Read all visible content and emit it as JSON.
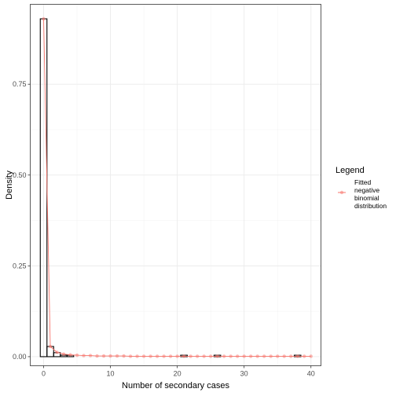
{
  "chart_data": {
    "type": "bar",
    "xlabel": "Number of secondary cases",
    "ylabel": "Density",
    "xlim": [
      -2,
      41.5
    ],
    "ylim": [
      -0.025,
      0.97
    ],
    "x_ticks": [
      0,
      10,
      20,
      30,
      40
    ],
    "y_ticks": [
      0.0,
      0.25,
      0.5,
      0.75
    ],
    "y_tick_labels": [
      "0.00",
      "0.25",
      "0.50",
      "0.75"
    ],
    "grid": true,
    "legend_position": "right",
    "legend": {
      "title": "Legend",
      "entries": [
        {
          "label_lines": [
            "Fitted",
            "negative",
            "binomial",
            "distribution"
          ],
          "color": "#f8766d"
        }
      ]
    },
    "histogram": {
      "bin_width": 1,
      "bar_stroke": "#000000",
      "bar_fill": "none",
      "bins": [
        {
          "x": 0,
          "density": 0.93
        },
        {
          "x": 1,
          "density": 0.028
        },
        {
          "x": 2,
          "density": 0.011
        },
        {
          "x": 3,
          "density": 0.004
        },
        {
          "x": 4,
          "density": 0.004
        },
        {
          "x": 21,
          "density": 0.004
        },
        {
          "x": 26,
          "density": 0.004
        },
        {
          "x": 38,
          "density": 0.004
        }
      ]
    },
    "series": [
      {
        "name": "Fitted negative binomial distribution",
        "color": "#f8766d",
        "x": [
          0,
          1,
          2,
          3,
          4,
          5,
          6,
          7,
          8,
          9,
          10,
          11,
          12,
          13,
          14,
          15,
          16,
          17,
          18,
          19,
          20,
          21,
          22,
          23,
          24,
          25,
          26,
          27,
          28,
          29,
          30,
          31,
          32,
          33,
          34,
          35,
          36,
          37,
          38,
          39,
          40
        ],
        "y": [
          0.93,
          0.028,
          0.012,
          0.007,
          0.005,
          0.004,
          0.003,
          0.003,
          0.002,
          0.002,
          0.002,
          0.002,
          0.002,
          0.001,
          0.001,
          0.001,
          0.001,
          0.001,
          0.001,
          0.001,
          0.001,
          0.001,
          0.001,
          0.001,
          0.001,
          0.001,
          0.001,
          0.001,
          0.001,
          0.001,
          0.001,
          0.001,
          0.001,
          0.001,
          0.001,
          0.001,
          0.001,
          0.001,
          0.001,
          0.001,
          0.001
        ]
      }
    ]
  }
}
